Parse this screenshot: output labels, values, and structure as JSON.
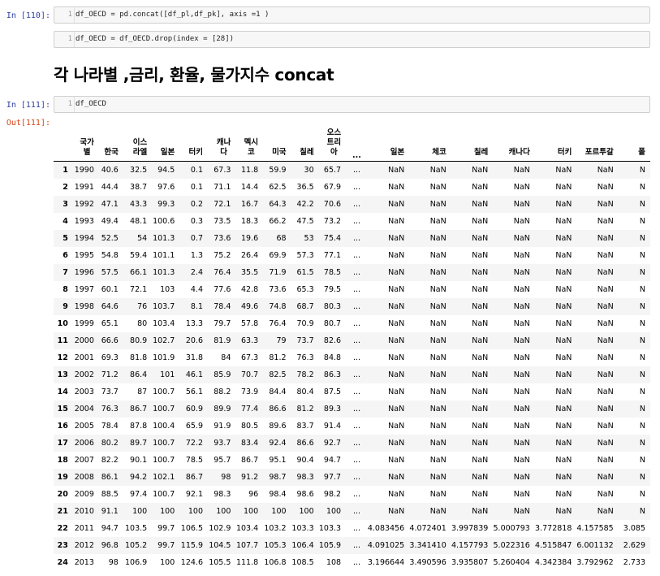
{
  "cells": [
    {
      "prompt": "In [110]:",
      "lines": [
        {
          "num": "1",
          "code": "df_OECD = pd.concat([df_pl,df_pk], axis =1 )"
        }
      ]
    },
    {
      "prompt": "",
      "lines": [
        {
          "num": "1",
          "code": "df_OECD = df_OECD.drop(index = [28])"
        }
      ]
    },
    {
      "prompt": "In [111]:",
      "lines": [
        {
          "num": "1",
          "code": "df_OECD"
        }
      ]
    }
  ],
  "markdown_heading": "각 나라별 ,금리, 환율, 물가지수 concat",
  "output_prompt": "Out[111]:",
  "table": {
    "headers": [
      "",
      "국가\n별",
      "한국",
      "이스\n라엘",
      "일본",
      "터키",
      "캐나\n다",
      "멕시\n코",
      "미국",
      "칠레",
      "오스\n트리\n아",
      "...",
      "일본",
      "체코",
      "칠레",
      "캐나다",
      "터키",
      "포르투갈",
      "폴"
    ],
    "rows": [
      [
        "1",
        "1990",
        "40.6",
        "32.5",
        "94.5",
        "0.1",
        "67.3",
        "11.8",
        "59.9",
        "30",
        "65.7",
        "...",
        "NaN",
        "NaN",
        "NaN",
        "NaN",
        "NaN",
        "NaN",
        "N"
      ],
      [
        "2",
        "1991",
        "44.4",
        "38.7",
        "97.6",
        "0.1",
        "71.1",
        "14.4",
        "62.5",
        "36.5",
        "67.9",
        "...",
        "NaN",
        "NaN",
        "NaN",
        "NaN",
        "NaN",
        "NaN",
        "N"
      ],
      [
        "3",
        "1992",
        "47.1",
        "43.3",
        "99.3",
        "0.2",
        "72.1",
        "16.7",
        "64.3",
        "42.2",
        "70.6",
        "...",
        "NaN",
        "NaN",
        "NaN",
        "NaN",
        "NaN",
        "NaN",
        "N"
      ],
      [
        "4",
        "1993",
        "49.4",
        "48.1",
        "100.6",
        "0.3",
        "73.5",
        "18.3",
        "66.2",
        "47.5",
        "73.2",
        "...",
        "NaN",
        "NaN",
        "NaN",
        "NaN",
        "NaN",
        "NaN",
        "N"
      ],
      [
        "5",
        "1994",
        "52.5",
        "54",
        "101.3",
        "0.7",
        "73.6",
        "19.6",
        "68",
        "53",
        "75.4",
        "...",
        "NaN",
        "NaN",
        "NaN",
        "NaN",
        "NaN",
        "NaN",
        "N"
      ],
      [
        "6",
        "1995",
        "54.8",
        "59.4",
        "101.1",
        "1.3",
        "75.2",
        "26.4",
        "69.9",
        "57.3",
        "77.1",
        "...",
        "NaN",
        "NaN",
        "NaN",
        "NaN",
        "NaN",
        "NaN",
        "N"
      ],
      [
        "7",
        "1996",
        "57.5",
        "66.1",
        "101.3",
        "2.4",
        "76.4",
        "35.5",
        "71.9",
        "61.5",
        "78.5",
        "...",
        "NaN",
        "NaN",
        "NaN",
        "NaN",
        "NaN",
        "NaN",
        "N"
      ],
      [
        "8",
        "1997",
        "60.1",
        "72.1",
        "103",
        "4.4",
        "77.6",
        "42.8",
        "73.6",
        "65.3",
        "79.5",
        "...",
        "NaN",
        "NaN",
        "NaN",
        "NaN",
        "NaN",
        "NaN",
        "N"
      ],
      [
        "9",
        "1998",
        "64.6",
        "76",
        "103.7",
        "8.1",
        "78.4",
        "49.6",
        "74.8",
        "68.7",
        "80.3",
        "...",
        "NaN",
        "NaN",
        "NaN",
        "NaN",
        "NaN",
        "NaN",
        "N"
      ],
      [
        "10",
        "1999",
        "65.1",
        "80",
        "103.4",
        "13.3",
        "79.7",
        "57.8",
        "76.4",
        "70.9",
        "80.7",
        "...",
        "NaN",
        "NaN",
        "NaN",
        "NaN",
        "NaN",
        "NaN",
        "N"
      ],
      [
        "11",
        "2000",
        "66.6",
        "80.9",
        "102.7",
        "20.6",
        "81.9",
        "63.3",
        "79",
        "73.7",
        "82.6",
        "...",
        "NaN",
        "NaN",
        "NaN",
        "NaN",
        "NaN",
        "NaN",
        "N"
      ],
      [
        "12",
        "2001",
        "69.3",
        "81.8",
        "101.9",
        "31.8",
        "84",
        "67.3",
        "81.2",
        "76.3",
        "84.8",
        "...",
        "NaN",
        "NaN",
        "NaN",
        "NaN",
        "NaN",
        "NaN",
        "N"
      ],
      [
        "13",
        "2002",
        "71.2",
        "86.4",
        "101",
        "46.1",
        "85.9",
        "70.7",
        "82.5",
        "78.2",
        "86.3",
        "...",
        "NaN",
        "NaN",
        "NaN",
        "NaN",
        "NaN",
        "NaN",
        "N"
      ],
      [
        "14",
        "2003",
        "73.7",
        "87",
        "100.7",
        "56.1",
        "88.2",
        "73.9",
        "84.4",
        "80.4",
        "87.5",
        "...",
        "NaN",
        "NaN",
        "NaN",
        "NaN",
        "NaN",
        "NaN",
        "N"
      ],
      [
        "15",
        "2004",
        "76.3",
        "86.7",
        "100.7",
        "60.9",
        "89.9",
        "77.4",
        "86.6",
        "81.2",
        "89.3",
        "...",
        "NaN",
        "NaN",
        "NaN",
        "NaN",
        "NaN",
        "NaN",
        "N"
      ],
      [
        "16",
        "2005",
        "78.4",
        "87.8",
        "100.4",
        "65.9",
        "91.9",
        "80.5",
        "89.6",
        "83.7",
        "91.4",
        "...",
        "NaN",
        "NaN",
        "NaN",
        "NaN",
        "NaN",
        "NaN",
        "N"
      ],
      [
        "17",
        "2006",
        "80.2",
        "89.7",
        "100.7",
        "72.2",
        "93.7",
        "83.4",
        "92.4",
        "86.6",
        "92.7",
        "...",
        "NaN",
        "NaN",
        "NaN",
        "NaN",
        "NaN",
        "NaN",
        "N"
      ],
      [
        "18",
        "2007",
        "82.2",
        "90.1",
        "100.7",
        "78.5",
        "95.7",
        "86.7",
        "95.1",
        "90.4",
        "94.7",
        "...",
        "NaN",
        "NaN",
        "NaN",
        "NaN",
        "NaN",
        "NaN",
        "N"
      ],
      [
        "19",
        "2008",
        "86.1",
        "94.2",
        "102.1",
        "86.7",
        "98",
        "91.2",
        "98.7",
        "98.3",
        "97.7",
        "...",
        "NaN",
        "NaN",
        "NaN",
        "NaN",
        "NaN",
        "NaN",
        "N"
      ],
      [
        "20",
        "2009",
        "88.5",
        "97.4",
        "100.7",
        "92.1",
        "98.3",
        "96",
        "98.4",
        "98.6",
        "98.2",
        "...",
        "NaN",
        "NaN",
        "NaN",
        "NaN",
        "NaN",
        "NaN",
        "N"
      ],
      [
        "21",
        "2010",
        "91.1",
        "100",
        "100",
        "100",
        "100",
        "100",
        "100",
        "100",
        "100",
        "...",
        "NaN",
        "NaN",
        "NaN",
        "NaN",
        "NaN",
        "NaN",
        "N"
      ],
      [
        "22",
        "2011",
        "94.7",
        "103.5",
        "99.7",
        "106.5",
        "102.9",
        "103.4",
        "103.2",
        "103.3",
        "103.3",
        "...",
        "4.083456",
        "4.072401",
        "3.997839",
        "5.000793",
        "3.772818",
        "4.157585",
        "3.085"
      ],
      [
        "23",
        "2012",
        "96.8",
        "105.2",
        "99.7",
        "115.9",
        "104.5",
        "107.7",
        "105.3",
        "106.4",
        "105.9",
        "...",
        "4.091025",
        "3.341410",
        "4.157793",
        "5.022316",
        "4.515847",
        "6.001132",
        "2.629"
      ],
      [
        "24",
        "2013",
        "98",
        "106.9",
        "100",
        "124.6",
        "105.5",
        "111.8",
        "106.8",
        "108.5",
        "108",
        "...",
        "3.196644",
        "3.490596",
        "3.935807",
        "5.260404",
        "4.342384",
        "3.792962",
        "2.733"
      ]
    ]
  }
}
